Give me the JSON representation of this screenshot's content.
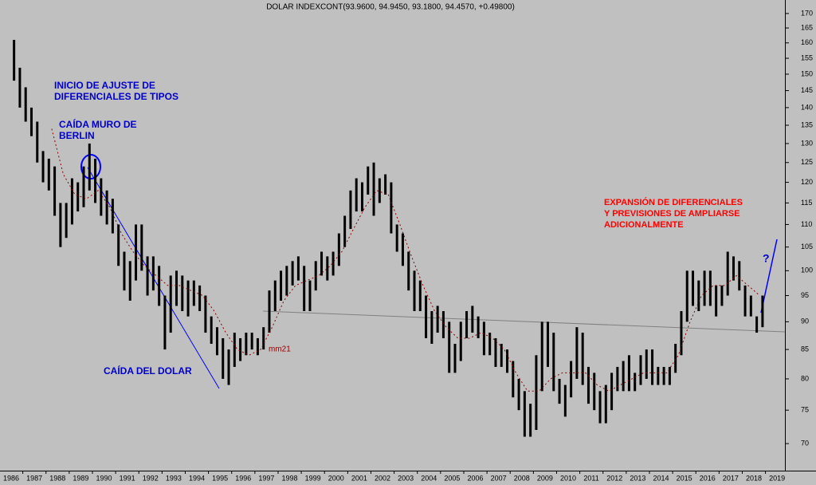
{
  "chart_data": {
    "type": "hilo",
    "title": "DOLAR INDEXCONT(93.9600, 94.9450, 93.1800, 94.4570, +0.49800)",
    "log_scale": true,
    "color": "#000000",
    "x": [
      1986.125,
      1986.375,
      1986.625,
      1986.875,
      1987.125,
      1987.375,
      1987.625,
      1987.875,
      1988.125,
      1988.375,
      1988.625,
      1988.875,
      1989.125,
      1989.375,
      1989.625,
      1989.875,
      1990.125,
      1990.375,
      1990.625,
      1990.875,
      1991.125,
      1991.375,
      1991.625,
      1991.875,
      1992.125,
      1992.375,
      1992.625,
      1992.875,
      1993.125,
      1993.375,
      1993.625,
      1993.875,
      1994.125,
      1994.375,
      1994.625,
      1994.875,
      1995.125,
      1995.375,
      1995.625,
      1995.875,
      1996.125,
      1996.375,
      1996.625,
      1996.875,
      1997.125,
      1997.375,
      1997.625,
      1997.875,
      1998.125,
      1998.375,
      1998.625,
      1998.875,
      1999.125,
      1999.375,
      1999.625,
      1999.875,
      2000.125,
      2000.375,
      2000.625,
      2000.875,
      2001.125,
      2001.375,
      2001.625,
      2001.875,
      2002.125,
      2002.375,
      2002.625,
      2002.875,
      2003.125,
      2003.375,
      2003.625,
      2003.875,
      2004.125,
      2004.375,
      2004.625,
      2004.875,
      2005.125,
      2005.375,
      2005.625,
      2005.875,
      2006.125,
      2006.375,
      2006.625,
      2006.875,
      2007.125,
      2007.375,
      2007.625,
      2007.875,
      2008.125,
      2008.375,
      2008.625,
      2008.875,
      2009.125,
      2009.375,
      2009.625,
      2009.875,
      2010.125,
      2010.375,
      2010.625,
      2010.875,
      2011.125,
      2011.375,
      2011.625,
      2011.875,
      2012.125,
      2012.375,
      2012.625,
      2012.875,
      2013.125,
      2013.375,
      2013.625,
      2013.875,
      2014.125,
      2014.375,
      2014.625,
      2014.875,
      2015.125,
      2015.375,
      2015.625,
      2015.875,
      2016.125,
      2016.375,
      2016.625,
      2016.875,
      2017.125,
      2017.375,
      2017.625,
      2017.875,
      2018.125,
      2018.375
    ],
    "high": [
      161,
      152,
      146,
      140,
      136,
      128,
      126,
      124,
      115,
      115,
      121,
      120,
      124,
      130,
      126,
      121,
      118,
      116,
      110,
      104,
      102,
      110,
      110,
      103,
      103,
      101,
      95,
      99,
      100,
      99,
      98,
      98,
      97,
      95,
      91,
      89,
      87,
      85,
      88,
      87,
      88,
      88,
      87,
      89,
      96,
      98,
      100,
      101,
      102,
      103,
      101,
      98,
      102,
      104,
      103,
      104,
      108,
      112,
      118,
      121,
      120,
      124,
      125,
      121,
      122,
      120,
      110,
      108,
      104,
      100,
      98,
      95,
      92,
      93,
      92,
      90,
      86,
      90,
      92,
      93,
      91,
      90,
      88,
      87,
      86,
      85,
      83,
      80,
      78,
      76,
      84,
      90,
      90,
      88,
      80,
      79,
      83,
      89,
      88,
      82,
      81,
      78,
      79,
      81,
      82,
      83,
      84,
      81,
      84,
      85,
      85,
      82,
      82,
      82,
      86,
      92,
      100,
      100,
      98,
      100,
      100,
      97,
      97,
      104,
      103,
      102,
      97,
      95,
      91,
      95
    ],
    "low": [
      148,
      140,
      136,
      132,
      125,
      120,
      118,
      112,
      105,
      107,
      110,
      113,
      114,
      118,
      115,
      112,
      110,
      108,
      101,
      96,
      94,
      98,
      100,
      95,
      96,
      93,
      85,
      88,
      93,
      92,
      91,
      93,
      92,
      88,
      86,
      84,
      80,
      79,
      82,
      83,
      84,
      85,
      84,
      85,
      88,
      92,
      94,
      95,
      97,
      98,
      92,
      92,
      96,
      99,
      98,
      99,
      101,
      105,
      109,
      113,
      113,
      117,
      112,
      115,
      117,
      108,
      104,
      101,
      96,
      92,
      92,
      87,
      86,
      88,
      87,
      81,
      81,
      83,
      87,
      88,
      87,
      84,
      84,
      82,
      82,
      81,
      77,
      75,
      71,
      71,
      72,
      78,
      82,
      78,
      76,
      74,
      77,
      80,
      79,
      76,
      75,
      73,
      73,
      75,
      78,
      78,
      78,
      78,
      79,
      80,
      79,
      79,
      79,
      79,
      81,
      84,
      90,
      93,
      92,
      93,
      93,
      91,
      93,
      95,
      98,
      96,
      91,
      91,
      88,
      89
    ],
    "ma": {
      "name": "mm21",
      "color": "#8b0000",
      "x": [
        1987.75,
        1988.25,
        1988.75,
        1989.25,
        1989.75,
        1990.25,
        1990.75,
        1991.25,
        1991.75,
        1992.25,
        1992.75,
        1993.25,
        1993.75,
        1994.25,
        1994.75,
        1995.25,
        1995.75,
        1996.25,
        1996.75,
        1997.25,
        1997.75,
        1998.25,
        1998.75,
        1999.25,
        1999.75,
        2000.25,
        2000.75,
        2001.25,
        2001.75,
        2002.25,
        2002.75,
        2003.25,
        2003.75,
        2004.25,
        2004.75,
        2005.25,
        2005.75,
        2006.25,
        2006.75,
        2007.25,
        2007.75,
        2008.25,
        2008.75,
        2009.25,
        2009.75,
        2010.25,
        2010.75,
        2011.25,
        2011.75,
        2012.25,
        2012.75,
        2013.25,
        2013.75,
        2014.25,
        2014.75,
        2015.25,
        2015.75,
        2016.25,
        2016.75,
        2017.25,
        2017.75,
        2018.25
      ],
      "values": [
        134,
        122,
        117,
        116,
        118,
        114,
        108,
        104,
        101,
        99,
        97,
        97,
        96,
        95,
        92,
        88,
        85,
        84,
        85,
        89,
        94,
        97,
        98,
        99,
        101,
        104,
        109,
        114,
        118,
        117,
        110,
        103,
        97,
        92,
        89,
        87,
        87,
        88,
        87,
        85,
        81,
        78,
        78,
        80,
        81,
        81,
        81,
        79,
        78,
        79,
        80,
        81,
        81,
        81,
        84,
        90,
        95,
        97,
        97,
        99,
        97,
        95
      ]
    },
    "xlim": [
      1985.52,
      2019.34
    ],
    "xticks": [
      1986,
      1987,
      1988,
      1989,
      1990,
      1991,
      1992,
      1993,
      1994,
      1995,
      1996,
      1997,
      1998,
      1999,
      2000,
      2001,
      2002,
      2003,
      2004,
      2005,
      2006,
      2007,
      2008,
      2009,
      2010,
      2011,
      2012,
      2013,
      2014,
      2015,
      2016,
      2017,
      2018,
      2019
    ],
    "ylim": [
      66.2,
      174.8
    ],
    "yticks": [
      70,
      75,
      80,
      85,
      90,
      95,
      100,
      105,
      110,
      115,
      120,
      125,
      130,
      135,
      140,
      145,
      150,
      155,
      160,
      165,
      170
    ],
    "annotations": [
      {
        "lines": [
          "INICIO DE AJUSTE DE",
          "DIFERENCIALES DE TIPOS"
        ]
      },
      {
        "lines": [
          "CAÍDA MURO DE",
          "BERLIN"
        ]
      },
      {
        "lines": [
          "CAÍDA DEL DOLAR"
        ]
      },
      {
        "lines": [
          "EXPANSIÓN DE DIFERENCIALES",
          "Y PREVISIONES DE AMPLIARSE",
          "ADICIONALMENTE"
        ]
      },
      {
        "lines": [
          "?"
        ]
      }
    ]
  }
}
